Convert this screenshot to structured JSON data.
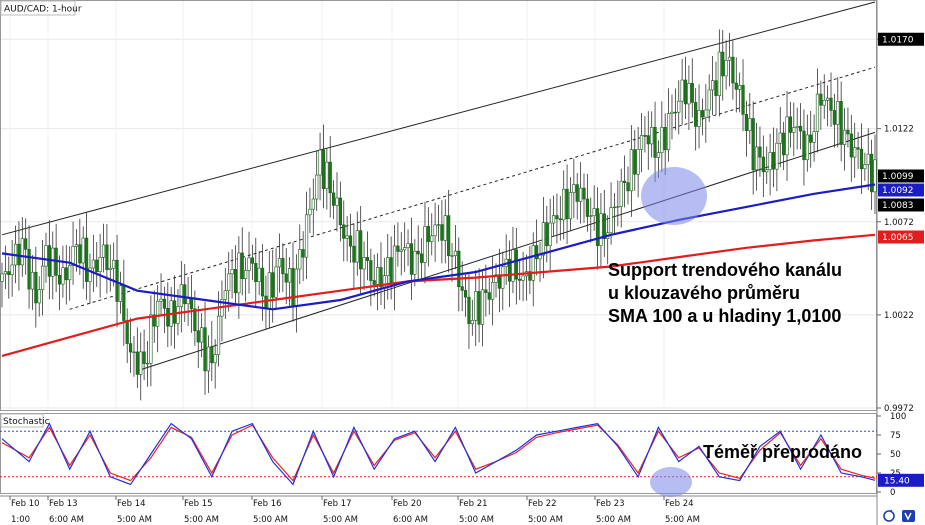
{
  "title": "AUD/CAD: 1-hour",
  "stoch_title": "Stochastic",
  "annotation_support": [
    "Support trendového kanálu",
    "u klouzavého průměru",
    "SMA 100 a u hladiny 1,0100"
  ],
  "annotation_oversold": "Téměř přeprodáno",
  "colors": {
    "sma100": "#1c1cc7",
    "sma200": "#e31d1d",
    "candle": "#1a7a1a",
    "stoch_k": "#2233dd",
    "stoch_d": "#ee2222",
    "highlight": "#7a86e8"
  },
  "chart_data": {
    "type": "line",
    "price_axis": {
      "ticks": [
        "1.0170",
        "1.0122",
        "1.0072",
        "1.0022",
        "0.9972"
      ],
      "ylim": [
        0.9972,
        1.019
      ]
    },
    "price_badges": [
      {
        "label": "1.0099",
        "value": 1.0099,
        "color": "#000000"
      },
      {
        "label": "1.0092",
        "value": 1.0092,
        "color": "#1c1cc7"
      },
      {
        "label": "1.0083",
        "value": 1.0083,
        "color": "#000000"
      },
      {
        "label": "1.0065",
        "value": 1.0065,
        "color": "#e31d1d"
      }
    ],
    "date_labels": [
      "Feb 10",
      "Feb 13",
      "Feb 14",
      "Feb 15",
      "Feb 16",
      "Feb 17",
      "Feb 20",
      "Feb 21",
      "Feb 22",
      "Feb 23",
      "Feb 24"
    ],
    "time_labels": [
      "1:00",
      "6:00 AM",
      "5:00 AM",
      "5:00 AM",
      "5:00 AM",
      "5:00 AM",
      "6:00 AM",
      "5:00 AM",
      "5:00 AM",
      "5:00 AM",
      "5:00 AM"
    ],
    "price_path": [
      [
        0,
        1.004
      ],
      [
        6,
        1.006
      ],
      [
        10,
        1.003
      ],
      [
        13,
        1.0055
      ],
      [
        18,
        1.004
      ],
      [
        22,
        1.006
      ],
      [
        26,
        1.0045
      ],
      [
        30,
        1.0055
      ],
      [
        34,
        1.004
      ],
      [
        38,
        1.0
      ],
      [
        42,
        0.9995
      ],
      [
        46,
        1.003
      ],
      [
        50,
        1.002
      ],
      [
        54,
        1.0035
      ],
      [
        58,
        1.001
      ],
      [
        62,
        0.9995
      ],
      [
        66,
        1.004
      ],
      [
        70,
        1.0045
      ],
      [
        74,
        1.005
      ],
      [
        78,
        1.003
      ],
      [
        82,
        1.005
      ],
      [
        86,
        1.0035
      ],
      [
        90,
        1.007
      ],
      [
        94,
        1.0105
      ],
      [
        98,
        1.0085
      ],
      [
        102,
        1.006
      ],
      [
        106,
        1.0055
      ],
      [
        110,
        1.004
      ],
      [
        114,
        1.0045
      ],
      [
        118,
        1.006
      ],
      [
        122,
        1.005
      ],
      [
        126,
        1.0065
      ],
      [
        130,
        1.007
      ],
      [
        134,
        1.005
      ],
      [
        138,
        1.002
      ],
      [
        142,
        1.003
      ],
      [
        146,
        1.004
      ],
      [
        150,
        1.005
      ],
      [
        154,
        1.004
      ],
      [
        158,
        1.0055
      ],
      [
        162,
        1.007
      ],
      [
        166,
        1.008
      ],
      [
        170,
        1.009
      ],
      [
        174,
        1.0075
      ],
      [
        178,
        1.0065
      ],
      [
        182,
        1.0085
      ],
      [
        186,
        1.01
      ],
      [
        190,
        1.012
      ],
      [
        194,
        1.011
      ],
      [
        198,
        1.013
      ],
      [
        202,
        1.0145
      ],
      [
        206,
        1.0125
      ],
      [
        210,
        1.0145
      ],
      [
        214,
        1.016
      ],
      [
        218,
        1.014
      ],
      [
        222,
        1.011
      ],
      [
        226,
        1.01
      ],
      [
        230,
        1.0115
      ],
      [
        234,
        1.0125
      ],
      [
        238,
        1.011
      ],
      [
        242,
        1.014
      ],
      [
        246,
        1.013
      ],
      [
        250,
        1.0115
      ],
      [
        254,
        1.0105
      ],
      [
        258,
        1.0097
      ]
    ],
    "sma100": [
      [
        0,
        1.0055
      ],
      [
        20,
        1.005
      ],
      [
        40,
        1.0035
      ],
      [
        60,
        1.003
      ],
      [
        80,
        1.0025
      ],
      [
        100,
        1.003
      ],
      [
        120,
        1.004
      ],
      [
        140,
        1.0045
      ],
      [
        160,
        1.0055
      ],
      [
        180,
        1.0065
      ],
      [
        200,
        1.0073
      ],
      [
        220,
        1.008
      ],
      [
        240,
        1.0087
      ],
      [
        258,
        1.0092
      ]
    ],
    "sma200": [
      [
        0,
        1.0
      ],
      [
        20,
        1.001
      ],
      [
        40,
        1.002
      ],
      [
        60,
        1.0025
      ],
      [
        80,
        1.003
      ],
      [
        100,
        1.0035
      ],
      [
        120,
        1.004
      ],
      [
        140,
        1.0042
      ],
      [
        160,
        1.0045
      ],
      [
        180,
        1.0048
      ],
      [
        200,
        1.0053
      ],
      [
        220,
        1.0058
      ],
      [
        240,
        1.0062
      ],
      [
        258,
        1.0065
      ]
    ],
    "channel": {
      "upper": [
        [
          0,
          1.0065
        ],
        [
          258,
          1.019
        ]
      ],
      "mid": [
        [
          20,
          1.0025
        ],
        [
          258,
          1.0155
        ]
      ],
      "lower": [
        [
          40,
          0.9992
        ],
        [
          258,
          1.012
        ]
      ]
    },
    "stochastic": {
      "ticks": [
        "100",
        "75",
        "50",
        "25",
        "0"
      ],
      "overbought": 80,
      "oversold": 20,
      "current": "15.40",
      "k": [
        [
          0,
          70
        ],
        [
          8,
          40
        ],
        [
          14,
          90
        ],
        [
          20,
          30
        ],
        [
          26,
          80
        ],
        [
          32,
          20
        ],
        [
          38,
          10
        ],
        [
          44,
          50
        ],
        [
          50,
          90
        ],
        [
          56,
          70
        ],
        [
          62,
          20
        ],
        [
          68,
          80
        ],
        [
          74,
          90
        ],
        [
          80,
          40
        ],
        [
          86,
          10
        ],
        [
          92,
          80
        ],
        [
          98,
          20
        ],
        [
          104,
          85
        ],
        [
          110,
          30
        ],
        [
          116,
          70
        ],
        [
          122,
          80
        ],
        [
          128,
          40
        ],
        [
          134,
          85
        ],
        [
          140,
          25
        ],
        [
          146,
          40
        ],
        [
          152,
          55
        ],
        [
          158,
          75
        ],
        [
          164,
          80
        ],
        [
          170,
          85
        ],
        [
          176,
          90
        ],
        [
          182,
          60
        ],
        [
          188,
          20
        ],
        [
          194,
          85
        ],
        [
          200,
          40
        ],
        [
          206,
          60
        ],
        [
          212,
          20
        ],
        [
          218,
          15
        ],
        [
          224,
          60
        ],
        [
          230,
          80
        ],
        [
          236,
          30
        ],
        [
          242,
          75
        ],
        [
          248,
          25
        ],
        [
          254,
          20
        ],
        [
          258,
          15.4
        ]
      ],
      "d": [
        [
          0,
          65
        ],
        [
          8,
          45
        ],
        [
          14,
          85
        ],
        [
          20,
          35
        ],
        [
          26,
          75
        ],
        [
          32,
          25
        ],
        [
          38,
          15
        ],
        [
          44,
          45
        ],
        [
          50,
          85
        ],
        [
          56,
          72
        ],
        [
          62,
          25
        ],
        [
          68,
          75
        ],
        [
          74,
          88
        ],
        [
          80,
          45
        ],
        [
          86,
          15
        ],
        [
          92,
          75
        ],
        [
          98,
          25
        ],
        [
          104,
          80
        ],
        [
          110,
          35
        ],
        [
          116,
          68
        ],
        [
          122,
          78
        ],
        [
          128,
          45
        ],
        [
          134,
          80
        ],
        [
          140,
          30
        ],
        [
          146,
          40
        ],
        [
          152,
          52
        ],
        [
          158,
          72
        ],
        [
          164,
          78
        ],
        [
          170,
          83
        ],
        [
          176,
          88
        ],
        [
          182,
          62
        ],
        [
          188,
          25
        ],
        [
          194,
          80
        ],
        [
          200,
          45
        ],
        [
          206,
          58
        ],
        [
          212,
          25
        ],
        [
          218,
          18
        ],
        [
          224,
          55
        ],
        [
          230,
          78
        ],
        [
          236,
          35
        ],
        [
          242,
          70
        ],
        [
          248,
          30
        ],
        [
          254,
          22
        ],
        [
          258,
          18
        ]
      ]
    }
  }
}
